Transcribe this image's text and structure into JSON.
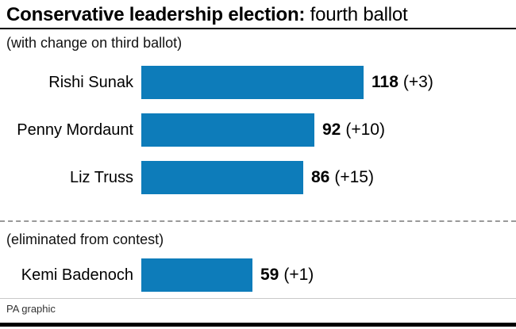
{
  "header": {
    "title_bold": "Conservative leadership election:",
    "title_regular": " fourth ballot",
    "subtitle": "(with change on third ballot)"
  },
  "sections": {
    "eliminated_label": "(eliminated from contest)"
  },
  "footer": {
    "credit": "PA graphic"
  },
  "chart_data": {
    "type": "bar",
    "orientation": "horizontal",
    "title": "Conservative leadership election: fourth ballot",
    "subtitle": "(with change on third ballot)",
    "categories": [
      "Rishi Sunak",
      "Penny Mordaunt",
      "Liz Truss",
      "Kemi Badenoch"
    ],
    "values": [
      118,
      92,
      86,
      59
    ],
    "change_labels": [
      "(+3)",
      "(+10)",
      "(+15)",
      "(+1)"
    ],
    "groups": [
      "main",
      "main",
      "main",
      "eliminated"
    ],
    "group_annotations": {
      "eliminated": "(eliminated from contest)"
    },
    "bar_color": "#0d7cba",
    "value_labels_shown": true,
    "axis_shown": false,
    "xlim": [
      0,
      130
    ],
    "credit": "PA graphic"
  }
}
